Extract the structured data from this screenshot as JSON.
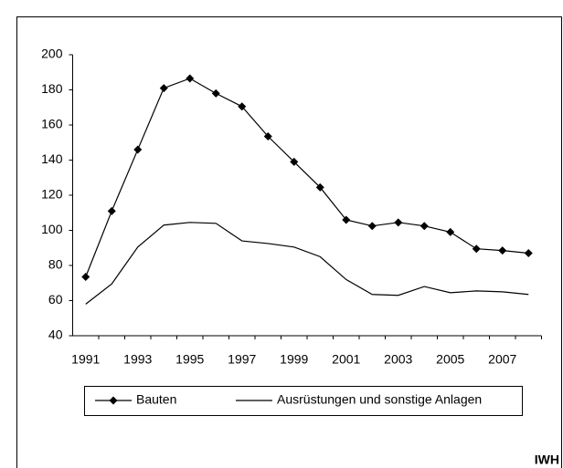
{
  "chart_data": {
    "type": "line",
    "categories": [
      "1991",
      null,
      "1993",
      null,
      "1995",
      null,
      "1997",
      null,
      "1999",
      null,
      "2001",
      null,
      "2003",
      null,
      "2005",
      null,
      "2007",
      null
    ],
    "series": [
      {
        "name": "Bauten",
        "color": "#000000",
        "marker": "diamond",
        "values": [
          73.5,
          111,
          146,
          181,
          186.5,
          178,
          170.5,
          153.5,
          139,
          124.5,
          106,
          102.5,
          104.5,
          102.5,
          99,
          89.5,
          88.5,
          87
        ]
      },
      {
        "name": "Ausrüstungen und sonstige Anlagen",
        "color": "#000000",
        "marker": "none",
        "values": [
          58,
          69.5,
          90.5,
          103,
          104.5,
          104,
          94,
          92.5,
          90.5,
          85,
          72,
          63.5,
          63,
          68,
          64.5,
          65.5,
          65,
          63.5
        ]
      }
    ],
    "ylim": [
      40,
      200
    ],
    "yticks": [
      40,
      60,
      80,
      100,
      120,
      140,
      160,
      180,
      200
    ],
    "grid": false,
    "legend": "bottom",
    "source": "IWH"
  }
}
